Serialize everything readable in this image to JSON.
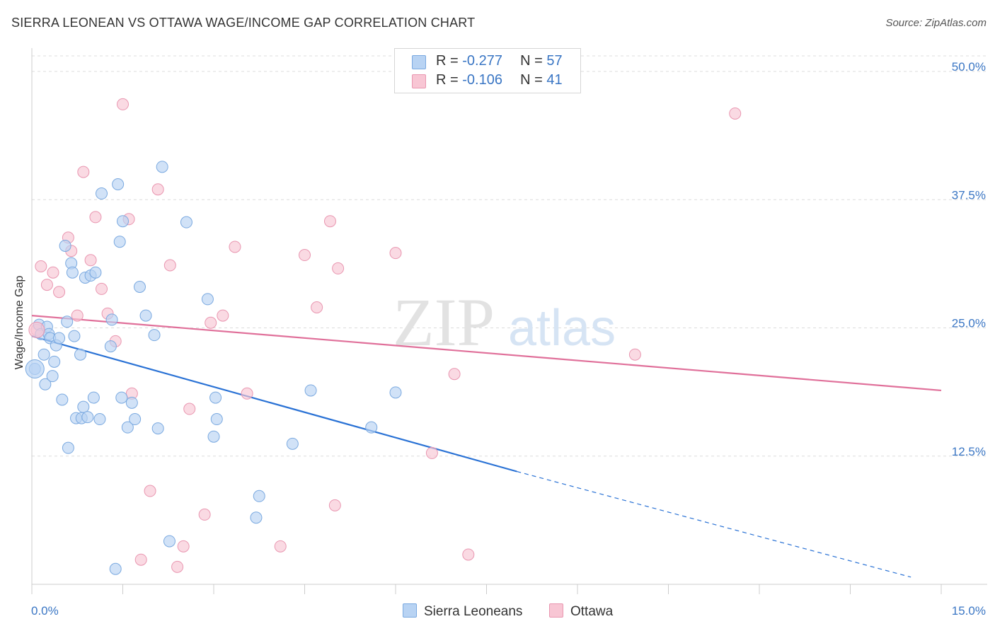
{
  "header": {
    "title": "SIERRA LEONEAN VS OTTAWA WAGE/INCOME GAP CORRELATION CHART",
    "source": "Source: ZipAtlas.com"
  },
  "legend": {
    "rows": [
      {
        "r_label": "R = ",
        "r_value": "-0.277",
        "n_label": "N = ",
        "n_value": "57"
      },
      {
        "r_label": "R = ",
        "r_value": "-0.106",
        "n_label": "N = ",
        "n_value": "41"
      }
    ]
  },
  "colors": {
    "blue_fill": "#b8d3f3",
    "blue_stroke": "#7aa9e0",
    "blue_line": "#2a72d5",
    "pink_fill": "#f8c6d4",
    "pink_stroke": "#e996b0",
    "pink_line": "#e0709a",
    "axis_label": "#3a76c4",
    "grid": "#dcdcdc"
  },
  "chart_data": {
    "type": "scatter",
    "title": "SIERRA LEONEAN VS OTTAWA WAGE/INCOME GAP CORRELATION CHART",
    "ylabel": "Wage/Income Gap",
    "xlabel": "",
    "xlim": [
      0,
      15
    ],
    "ylim": [
      0,
      52
    ],
    "x_tick_labels": [
      "0.0%",
      "15.0%"
    ],
    "y_ticks": [
      12.5,
      25.0,
      37.5,
      50.0
    ],
    "y_tick_labels": [
      "12.5%",
      "25.0%",
      "37.5%",
      "50.0%"
    ],
    "grid": true,
    "watermark": {
      "a": "ZIP",
      "b": "atlas"
    },
    "series": [
      {
        "name": "Sierra Leoneans",
        "color": "#7aa9e0",
        "r": -0.277,
        "n": 57,
        "trend": {
          "x": [
            0.0,
            8.0
          ],
          "y": [
            24.2,
            11.0
          ],
          "dashed_to": [
            14.5,
            0.7
          ]
        },
        "points": [
          [
            0.05,
            21.0
          ],
          [
            0.12,
            25.3
          ],
          [
            0.15,
            24.4
          ],
          [
            0.2,
            22.4
          ],
          [
            0.22,
            19.5
          ],
          [
            0.25,
            25.1
          ],
          [
            0.28,
            24.4
          ],
          [
            0.3,
            24.0
          ],
          [
            0.34,
            20.3
          ],
          [
            0.37,
            21.7
          ],
          [
            0.4,
            23.3
          ],
          [
            0.45,
            24.0
          ],
          [
            0.5,
            18.0
          ],
          [
            0.55,
            33.0
          ],
          [
            0.58,
            25.6
          ],
          [
            0.6,
            13.3
          ],
          [
            0.65,
            31.3
          ],
          [
            0.67,
            30.4
          ],
          [
            0.7,
            24.2
          ],
          [
            0.73,
            16.2
          ],
          [
            0.8,
            22.4
          ],
          [
            0.82,
            16.2
          ],
          [
            0.85,
            17.3
          ],
          [
            0.88,
            29.9
          ],
          [
            0.92,
            16.3
          ],
          [
            0.97,
            30.1
          ],
          [
            1.02,
            18.2
          ],
          [
            1.05,
            30.4
          ],
          [
            1.12,
            16.1
          ],
          [
            1.15,
            38.1
          ],
          [
            1.3,
            23.2
          ],
          [
            1.32,
            25.8
          ],
          [
            1.38,
            1.5
          ],
          [
            1.42,
            39.0
          ],
          [
            1.45,
            33.4
          ],
          [
            1.48,
            18.2
          ],
          [
            1.5,
            35.4
          ],
          [
            1.58,
            15.3
          ],
          [
            1.65,
            17.7
          ],
          [
            1.7,
            16.1
          ],
          [
            1.78,
            29.0
          ],
          [
            1.88,
            26.2
          ],
          [
            2.02,
            24.3
          ],
          [
            2.08,
            15.2
          ],
          [
            2.15,
            40.7
          ],
          [
            2.27,
            4.2
          ],
          [
            2.55,
            35.3
          ],
          [
            2.9,
            27.8
          ],
          [
            3.0,
            14.4
          ],
          [
            3.03,
            18.2
          ],
          [
            3.05,
            16.1
          ],
          [
            3.7,
            6.5
          ],
          [
            3.75,
            8.6
          ],
          [
            4.3,
            13.7
          ],
          [
            4.6,
            18.9
          ],
          [
            5.6,
            15.3
          ],
          [
            6.0,
            18.7
          ]
        ]
      },
      {
        "name": "Ottawa",
        "color": "#e996b0",
        "r": -0.106,
        "n": 41,
        "trend": {
          "x": [
            0.0,
            15.0
          ],
          "y": [
            26.2,
            18.9
          ]
        },
        "points": [
          [
            0.08,
            24.8
          ],
          [
            0.15,
            31.0
          ],
          [
            0.25,
            29.2
          ],
          [
            0.35,
            30.4
          ],
          [
            0.45,
            28.5
          ],
          [
            0.6,
            33.8
          ],
          [
            0.65,
            32.5
          ],
          [
            0.75,
            26.2
          ],
          [
            0.85,
            40.2
          ],
          [
            0.97,
            31.6
          ],
          [
            1.05,
            35.8
          ],
          [
            1.15,
            28.8
          ],
          [
            1.25,
            26.4
          ],
          [
            1.38,
            23.7
          ],
          [
            1.5,
            46.8
          ],
          [
            1.6,
            35.6
          ],
          [
            1.65,
            18.6
          ],
          [
            1.8,
            2.4
          ],
          [
            1.95,
            9.1
          ],
          [
            2.08,
            38.5
          ],
          [
            2.28,
            31.1
          ],
          [
            2.4,
            1.7
          ],
          [
            2.5,
            3.7
          ],
          [
            2.6,
            17.1
          ],
          [
            2.85,
            6.8
          ],
          [
            2.95,
            25.5
          ],
          [
            3.15,
            26.2
          ],
          [
            3.35,
            32.9
          ],
          [
            3.55,
            18.6
          ],
          [
            4.1,
            3.7
          ],
          [
            4.5,
            32.1
          ],
          [
            4.7,
            27.0
          ],
          [
            4.92,
            35.4
          ],
          [
            5.0,
            7.7
          ],
          [
            5.05,
            30.8
          ],
          [
            6.0,
            32.3
          ],
          [
            6.6,
            12.8
          ],
          [
            6.97,
            20.5
          ],
          [
            7.2,
            2.9
          ],
          [
            9.95,
            22.4
          ],
          [
            11.6,
            45.9
          ]
        ]
      }
    ]
  }
}
